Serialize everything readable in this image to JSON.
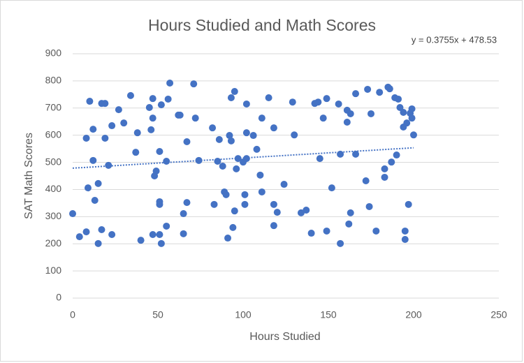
{
  "chart_data": {
    "type": "scatter",
    "title": "Hours Studied and Math Scores",
    "x_label": "Hours Studied",
    "y_label": "SAT Math Scores",
    "color": "#4472c4",
    "grid": true,
    "xlim": [
      0,
      250
    ],
    "xticks": [
      0,
      50,
      100,
      150,
      200,
      250
    ],
    "ylim": [
      0,
      900
    ],
    "yticks": [
      0,
      100,
      200,
      300,
      400,
      500,
      600,
      700,
      800,
      900
    ],
    "trendline": {
      "label": "y = 0.3755x + 478.53",
      "slope": 0.3755,
      "intercept": 478.53,
      "color": "#4472c4"
    },
    "x": [
      0,
      4,
      8,
      8,
      9,
      10,
      12,
      12,
      13,
      15,
      15,
      17,
      17,
      19,
      19,
      21,
      23,
      23,
      27,
      30,
      34,
      37,
      38,
      40,
      45,
      46,
      47,
      47,
      47,
      48,
      49,
      51,
      51,
      51,
      51,
      52,
      52,
      55,
      55,
      56,
      57,
      62,
      63,
      65,
      65,
      67,
      67,
      71,
      72,
      74,
      82,
      83,
      85,
      86,
      88,
      89,
      90,
      91,
      92,
      93,
      93,
      94,
      95,
      95,
      96,
      97,
      100,
      101,
      101,
      102,
      102,
      102,
      106,
      108,
      110,
      111,
      111,
      115,
      118,
      118,
      118,
      120,
      124,
      129,
      130,
      134,
      137,
      140,
      142,
      144,
      145,
      147,
      149,
      149,
      152,
      156,
      157,
      157,
      161,
      161,
      162,
      163,
      163,
      166,
      166,
      172,
      173,
      174,
      175,
      178,
      180,
      183,
      183,
      185,
      186,
      187,
      189,
      190,
      191,
      192,
      194,
      194,
      195,
      195,
      196,
      198,
      197,
      199,
      199,
      200
    ],
    "values": [
      311,
      226,
      244,
      589,
      406,
      725,
      622,
      507,
      360,
      422,
      201,
      252,
      717,
      717,
      589,
      489,
      635,
      234,
      694,
      645,
      746,
      537,
      609,
      213,
      702,
      620,
      735,
      234,
      663,
      450,
      468,
      540,
      355,
      345,
      234,
      712,
      201,
      265,
      504,
      733,
      792,
      674,
      674,
      237,
      311,
      352,
      576,
      789,
      663,
      507,
      627,
      345,
      504,
      584,
      486,
      391,
      381,
      221,
      599,
      579,
      738,
      260,
      761,
      321,
      476,
      514,
      501,
      345,
      381,
      514,
      715,
      609,
      599,
      548,
      453,
      391,
      663,
      738,
      267,
      345,
      627,
      316,
      419,
      722,
      601,
      314,
      324,
      239,
      717,
      722,
      514,
      663,
      735,
      247,
      406,
      715,
      201,
      530,
      692,
      648,
      273,
      679,
      314,
      753,
      530,
      432,
      769,
      337,
      679,
      247,
      758,
      476,
      445,
      777,
      771,
      501,
      738,
      527,
      733,
      702,
      630,
      684,
      247,
      216,
      645,
      681,
      345,
      697,
      663,
      601
    ]
  }
}
